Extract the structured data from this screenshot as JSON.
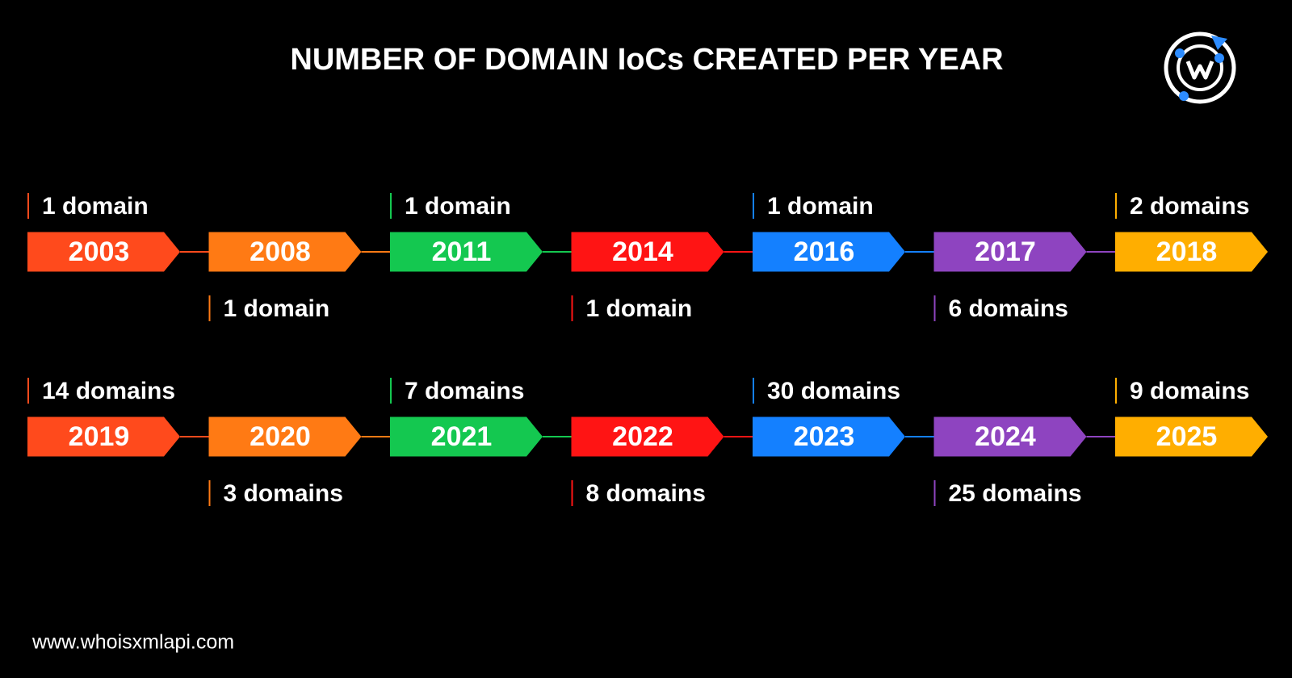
{
  "title": "NUMBER OF DOMAIN IoCs CREATED PER YEAR",
  "rows": [
    [
      {
        "year": "2003",
        "label": "1 domain"
      },
      {
        "year": "2008",
        "label": "1 domain"
      },
      {
        "year": "2011",
        "label": "1 domain"
      },
      {
        "year": "2014",
        "label": "1 domain"
      },
      {
        "year": "2016",
        "label": "1 domain"
      },
      {
        "year": "2017",
        "label": "6 domains"
      },
      {
        "year": "2018",
        "label": "2 domains"
      }
    ],
    [
      {
        "year": "2019",
        "label": "14 domains"
      },
      {
        "year": "2020",
        "label": "3 domains"
      },
      {
        "year": "2021",
        "label": "7 domains"
      },
      {
        "year": "2022",
        "label": "8 domains"
      },
      {
        "year": "2023",
        "label": "30 domains"
      },
      {
        "year": "2024",
        "label": "25 domains"
      },
      {
        "year": "2025",
        "label": "9 domains"
      }
    ]
  ],
  "footer": "www.whoisxmlapi.com"
}
